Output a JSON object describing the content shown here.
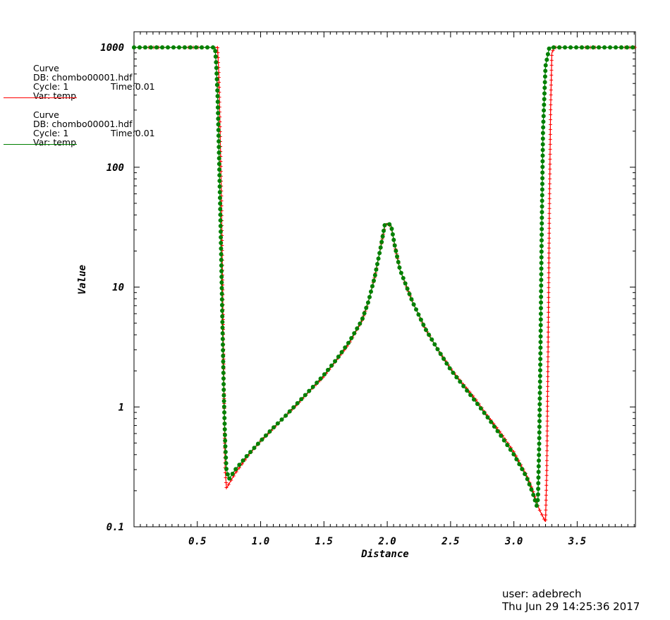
{
  "legend": [
    {
      "label": "Curve",
      "db": "DB: chombo00001.hdf",
      "cycle": "Cycle: 1",
      "time": "Time:0.01",
      "var": "Var: temp",
      "color": "#ff0000"
    },
    {
      "label": "Curve",
      "db": "DB: chombo00001.hdf",
      "cycle": "Cycle: 1",
      "time": "Time:0.01",
      "var": "Var: temp",
      "color": "#008000"
    }
  ],
  "footer": {
    "user": "user: adebrech",
    "date": "Thu Jun 29 14:25:36 2017"
  },
  "chart_data": {
    "type": "line",
    "xlabel": "Distance",
    "ylabel": "Value",
    "xlim": [
      0.0,
      3.96
    ],
    "ylim": [
      0.1,
      1350
    ],
    "yscale": "log",
    "xticks": [
      "0.5",
      "1.0",
      "1.5",
      "2.0",
      "2.5",
      "3.0",
      "3.5"
    ],
    "yticks": [
      "0.1",
      "1",
      "10",
      "100",
      "1000"
    ],
    "series": [
      {
        "color": "#ff0000",
        "marker": "plus",
        "points": [
          [
            0.0,
            1000
          ],
          [
            0.6,
            1000
          ],
          [
            0.66,
            1000
          ],
          [
            0.67,
            600
          ],
          [
            0.68,
            200
          ],
          [
            0.69,
            60
          ],
          [
            0.7,
            10
          ],
          [
            0.71,
            1.5
          ],
          [
            0.72,
            0.3
          ],
          [
            0.73,
            0.21
          ],
          [
            0.8,
            0.28
          ],
          [
            0.9,
            0.39
          ],
          [
            1.0,
            0.52
          ],
          [
            1.1,
            0.66
          ],
          [
            1.2,
            0.85
          ],
          [
            1.3,
            1.08
          ],
          [
            1.4,
            1.4
          ],
          [
            1.5,
            1.8
          ],
          [
            1.6,
            2.45
          ],
          [
            1.7,
            3.4
          ],
          [
            1.8,
            5.2
          ],
          [
            1.85,
            7.5
          ],
          [
            1.9,
            12
          ],
          [
            1.95,
            22
          ],
          [
            1.98,
            32
          ],
          [
            2.0,
            34
          ],
          [
            2.03,
            32
          ],
          [
            2.06,
            22
          ],
          [
            2.1,
            14
          ],
          [
            2.2,
            7.5
          ],
          [
            2.3,
            4.5
          ],
          [
            2.4,
            3.0
          ],
          [
            2.5,
            2.1
          ],
          [
            2.6,
            1.55
          ],
          [
            2.7,
            1.15
          ],
          [
            2.8,
            0.82
          ],
          [
            2.9,
            0.6
          ],
          [
            3.0,
            0.42
          ],
          [
            3.1,
            0.27
          ],
          [
            3.15,
            0.2
          ],
          [
            3.2,
            0.14
          ],
          [
            3.25,
            0.11
          ],
          [
            3.26,
            0.3
          ],
          [
            3.27,
            3
          ],
          [
            3.28,
            40
          ],
          [
            3.29,
            300
          ],
          [
            3.3,
            900
          ],
          [
            3.32,
            1000
          ],
          [
            3.96,
            1000
          ]
        ]
      },
      {
        "color": "#008000",
        "marker": "dot",
        "points": [
          [
            0.0,
            1000
          ],
          [
            0.62,
            1000
          ],
          [
            0.64,
            1000
          ],
          [
            0.65,
            700
          ],
          [
            0.66,
            400
          ],
          [
            0.67,
            150
          ],
          [
            0.68,
            50
          ],
          [
            0.69,
            15
          ],
          [
            0.7,
            4
          ],
          [
            0.71,
            1.2
          ],
          [
            0.72,
            0.5
          ],
          [
            0.73,
            0.3
          ],
          [
            0.75,
            0.25
          ],
          [
            0.8,
            0.3
          ],
          [
            0.9,
            0.4
          ],
          [
            1.0,
            0.52
          ],
          [
            1.1,
            0.67
          ],
          [
            1.2,
            0.85
          ],
          [
            1.3,
            1.1
          ],
          [
            1.4,
            1.42
          ],
          [
            1.5,
            1.85
          ],
          [
            1.6,
            2.5
          ],
          [
            1.7,
            3.5
          ],
          [
            1.8,
            5.3
          ],
          [
            1.85,
            7.5
          ],
          [
            1.9,
            12
          ],
          [
            1.95,
            22
          ],
          [
            1.98,
            33
          ],
          [
            2.0,
            34
          ],
          [
            2.03,
            33
          ],
          [
            2.06,
            22
          ],
          [
            2.1,
            14
          ],
          [
            2.2,
            7.5
          ],
          [
            2.3,
            4.5
          ],
          [
            2.4,
            3.0
          ],
          [
            2.5,
            2.05
          ],
          [
            2.6,
            1.5
          ],
          [
            2.7,
            1.1
          ],
          [
            2.8,
            0.8
          ],
          [
            2.9,
            0.57
          ],
          [
            3.0,
            0.4
          ],
          [
            3.1,
            0.26
          ],
          [
            3.15,
            0.19
          ],
          [
            3.18,
            0.15
          ],
          [
            3.19,
            0.17
          ],
          [
            3.2,
            0.5
          ],
          [
            3.21,
            3
          ],
          [
            3.22,
            30
          ],
          [
            3.23,
            200
          ],
          [
            3.25,
            700
          ],
          [
            3.28,
            1000
          ],
          [
            3.96,
            1000
          ]
        ]
      }
    ]
  }
}
